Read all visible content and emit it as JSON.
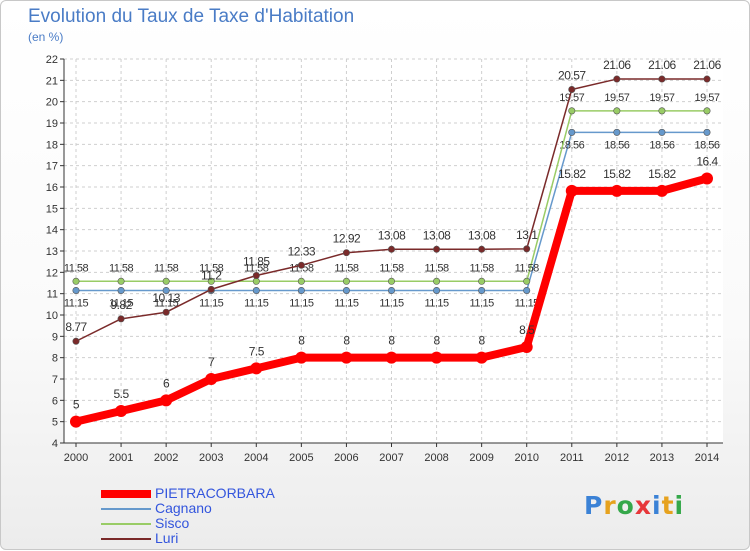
{
  "title": "Evolution du Taux de Taxe d'Habitation",
  "unit_label": "(en %)",
  "logo": {
    "letters": [
      "P",
      "r",
      "o",
      "x",
      "i",
      "t",
      "i"
    ],
    "colors": [
      "#3b82d6",
      "#e6a21e",
      "#35a84a",
      "#e7373a",
      "#3b82d6",
      "#e6a21e",
      "#35a84a"
    ]
  },
  "chart_data": {
    "type": "line",
    "title": "Evolution du Taux de Taxe d'Habitation",
    "ylabel": "(en %)",
    "xlabel": "",
    "x": [
      2000,
      2001,
      2002,
      2003,
      2004,
      2005,
      2006,
      2007,
      2008,
      2009,
      2010,
      2011,
      2012,
      2013,
      2014
    ],
    "ylim": [
      4,
      22
    ],
    "yticks": [
      4,
      5,
      6,
      7,
      8,
      9,
      10,
      11,
      12,
      13,
      14,
      15,
      16,
      17,
      18,
      19,
      20,
      21,
      22
    ],
    "grid": true,
    "legend_position": "bottom-left",
    "series": [
      {
        "name": "PIETRACORBARA",
        "color": "#ff0000",
        "values": [
          5,
          5.5,
          6,
          7,
          7.5,
          8,
          8,
          8,
          8,
          8,
          8.5,
          15.82,
          15.82,
          15.82,
          16.4
        ],
        "labels": [
          "5",
          "5.5",
          "6",
          "7",
          "7.5",
          "8",
          "8",
          "8",
          "8",
          "8",
          "8.5",
          "15.82",
          "15.82",
          "15.82",
          "16.4"
        ]
      },
      {
        "name": "Cagnano",
        "color": "#6699cc",
        "values": [
          11.15,
          11.15,
          11.15,
          11.15,
          11.15,
          11.15,
          11.15,
          11.15,
          11.15,
          11.15,
          11.15,
          18.56,
          18.56,
          18.56,
          18.56
        ],
        "labels": [
          "11.15",
          "11.15",
          "11.15",
          "11.15",
          "11.15",
          "11.15",
          "11.15",
          "11.15",
          "11.15",
          "11.15",
          "11.15",
          "18.56",
          "18.56",
          "18.56",
          "18.56"
        ]
      },
      {
        "name": "Sisco",
        "color": "#99cc66",
        "values": [
          11.58,
          11.58,
          11.58,
          11.58,
          11.58,
          11.58,
          11.58,
          11.58,
          11.58,
          11.58,
          11.58,
          19.57,
          19.57,
          19.57,
          19.57
        ],
        "labels": [
          "11.58",
          "11.58",
          "11.58",
          "11.58",
          "11.58",
          "11.58",
          "11.58",
          "11.58",
          "11.58",
          "11.58",
          "11.58",
          "19.57",
          "19.57",
          "19.57",
          "19.57"
        ]
      },
      {
        "name": "Luri",
        "color": "#7a2a2a",
        "values": [
          8.77,
          9.82,
          10.13,
          11.2,
          11.85,
          12.33,
          12.92,
          13.08,
          13.08,
          13.08,
          13.1,
          20.57,
          21.06,
          21.06,
          21.06
        ],
        "labels": [
          "8.77",
          "9.82",
          "10.13",
          "11.2",
          "11.85",
          "12.33",
          "12.92",
          "13.08",
          "13.08",
          "13.08",
          "13.1",
          "20.57",
          "21.06",
          "21.06",
          "21.06"
        ]
      }
    ]
  }
}
